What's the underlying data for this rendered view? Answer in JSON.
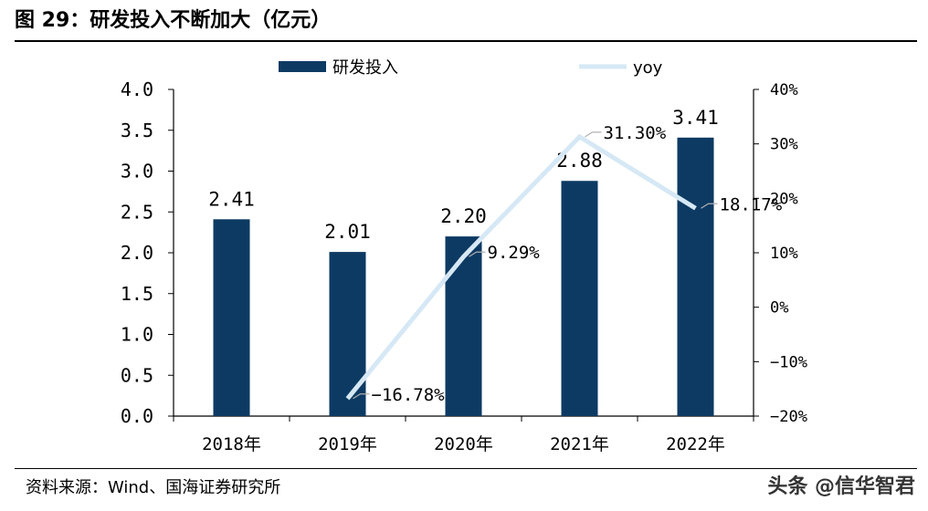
{
  "figure": {
    "title": "图 29：研发投入不断加大（亿元）",
    "source": "资料来源：Wind、国海证券研究所",
    "watermark": "头条 @信华智君"
  },
  "colors": {
    "bar": "#0d3a63",
    "line": "#d6e8f5",
    "label_connector": "#b0b0b0",
    "axis": "#000000"
  },
  "chart_data": {
    "type": "bar",
    "categories": [
      "2018年",
      "2019年",
      "2020年",
      "2021年",
      "2022年"
    ],
    "series": [
      {
        "name": "研发投入",
        "type": "bar",
        "axis": "left",
        "values": [
          2.41,
          2.01,
          2.2,
          2.88,
          3.41
        ],
        "labels": [
          "2.41",
          "2.01",
          "2.20",
          "2.88",
          "3.41"
        ]
      },
      {
        "name": "yoy",
        "type": "line",
        "axis": "right",
        "values": [
          null,
          -16.78,
          9.29,
          31.3,
          18.17
        ],
        "labels": [
          "",
          "−16.78%",
          "9.29%",
          "31.30%",
          "18.17%"
        ]
      }
    ],
    "y_left": {
      "ylim": [
        0,
        4
      ],
      "ticks": [
        0,
        0.5,
        1.0,
        1.5,
        2.0,
        2.5,
        3.0,
        3.5,
        4.0
      ],
      "tick_labels": [
        "0.0",
        "0.5",
        "1.0",
        "1.5",
        "2.0",
        "2.5",
        "3.0",
        "3.5",
        "4.0"
      ]
    },
    "y_right": {
      "ylim": [
        -20,
        40
      ],
      "ticks": [
        -20,
        -10,
        0,
        10,
        20,
        30,
        40
      ],
      "tick_labels": [
        "−20%",
        "−10%",
        "0%",
        "10%",
        "20%",
        "30%",
        "40%"
      ]
    },
    "legend": {
      "position": "top",
      "entries": [
        {
          "name": "研发投入",
          "kind": "bar"
        },
        {
          "name": "yoy",
          "kind": "line"
        }
      ]
    },
    "title": "研发投入不断加大（亿元）",
    "xlabel": "",
    "ylabel": "",
    "grid": false
  }
}
